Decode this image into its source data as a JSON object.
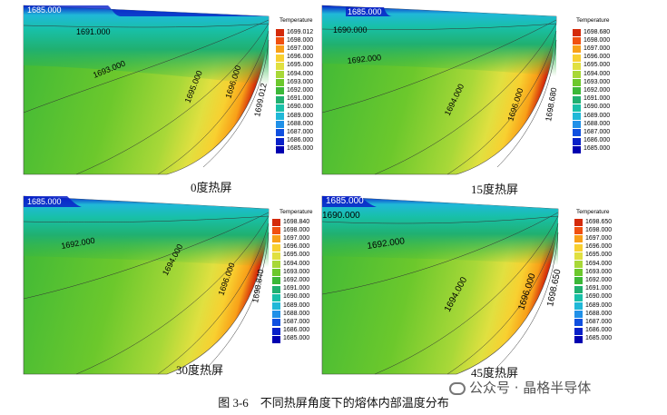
{
  "panels": [
    {
      "label": "0度热屏",
      "legend_title": "Temperature",
      "legend_values": [
        "1699.012",
        "1698.000",
        "1697.000",
        "1696.000",
        "1695.000",
        "1694.000",
        "1693.000",
        "1692.000",
        "1691.000",
        "1690.000",
        "1689.000",
        "1688.000",
        "1687.000",
        "1686.000",
        "1685.000"
      ],
      "contour_labels": [
        "1685.000",
        "1691.000",
        "1693.000",
        "1695.000",
        "1696.000",
        "1699.012"
      ]
    },
    {
      "label": "15度热屏",
      "legend_title": "Temperature",
      "legend_values": [
        "1698.680",
        "1698.000",
        "1697.000",
        "1696.000",
        "1695.000",
        "1694.000",
        "1693.000",
        "1692.000",
        "1691.000",
        "1690.000",
        "1689.000",
        "1688.000",
        "1687.000",
        "1686.000",
        "1685.000"
      ],
      "contour_labels": [
        "1685.000",
        "1690.000",
        "1692.000",
        "1694.000",
        "1696.000",
        "1698.680"
      ]
    },
    {
      "label": "30度热屏",
      "legend_title": "Temperature",
      "legend_values": [
        "1698.840",
        "1698.000",
        "1697.000",
        "1696.000",
        "1695.000",
        "1694.000",
        "1693.000",
        "1692.000",
        "1691.000",
        "1690.000",
        "1689.000",
        "1688.000",
        "1687.000",
        "1686.000",
        "1685.000"
      ],
      "contour_labels": [
        "1685.000",
        "1692.000",
        "1694.000",
        "1696.000",
        "1698.840"
      ]
    },
    {
      "label": "45度热屏",
      "legend_title": "Temperature",
      "legend_values": [
        "1698.650",
        "1698.000",
        "1697.000",
        "1696.000",
        "1695.000",
        "1694.000",
        "1693.000",
        "1692.000",
        "1691.000",
        "1690.000",
        "1689.000",
        "1688.000",
        "1687.000",
        "1686.000",
        "1685.000"
      ],
      "contour_labels": [
        "1685.000",
        "1690.000",
        "1692.000",
        "1694.000",
        "1696.000",
        "1698.650"
      ]
    }
  ],
  "legend_colors": [
    "#d42a0a",
    "#f05010",
    "#f8a018",
    "#f8d030",
    "#e0e040",
    "#a8d838",
    "#6cc82c",
    "#3cb838",
    "#20b070",
    "#18c0a8",
    "#20b8d8",
    "#2090e8",
    "#1050e0",
    "#0820c8",
    "#0000b0"
  ],
  "caption": "图 3-6　不同热屏角度下的熔体内部温度分布",
  "watermark": "公众号 · 晶格半导体"
}
